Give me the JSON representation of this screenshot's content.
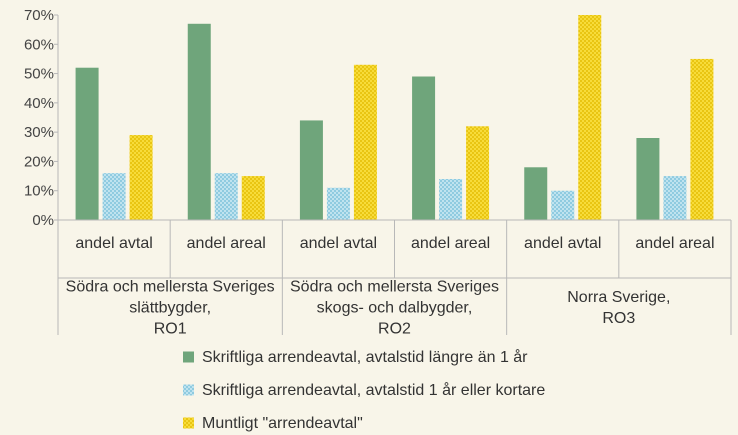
{
  "chart_data": {
    "type": "bar",
    "title": "",
    "xlabel": "",
    "ylabel": "",
    "ylim": [
      0,
      70
    ],
    "y_ticks": [
      "0%",
      "10%",
      "20%",
      "30%",
      "40%",
      "50%",
      "60%",
      "70%"
    ],
    "grid": false,
    "legend_position": "bottom",
    "groups": [
      {
        "lines": [
          "Södra och mellersta Sveriges",
          "slättbygder,",
          "RO1"
        ]
      },
      {
        "lines": [
          "Södra och mellersta Sveriges",
          "skogs- och dalbygder,",
          "RO2"
        ]
      },
      {
        "lines": [
          "Norra Sverige,",
          "RO3"
        ]
      }
    ],
    "categories": [
      "andel avtal",
      "andel areal",
      "andel avtal",
      "andel areal",
      "andel avtal",
      "andel areal"
    ],
    "series": [
      {
        "name": "Skriftliga arrendeavtal, avtalstid längre än 1 år",
        "color": "#6fa57b",
        "values": [
          52,
          67,
          34,
          49,
          18,
          28
        ]
      },
      {
        "name": "Skriftliga arrendeavtal, avtalstid 1 år eller kortare",
        "color": "#a8d8e8",
        "values": [
          16,
          16,
          11,
          14,
          10,
          15
        ]
      },
      {
        "name": "Muntligt \"arrendeavtal\"",
        "color": "#f2d21b",
        "values": [
          29,
          15,
          53,
          32,
          70,
          55
        ]
      }
    ]
  }
}
